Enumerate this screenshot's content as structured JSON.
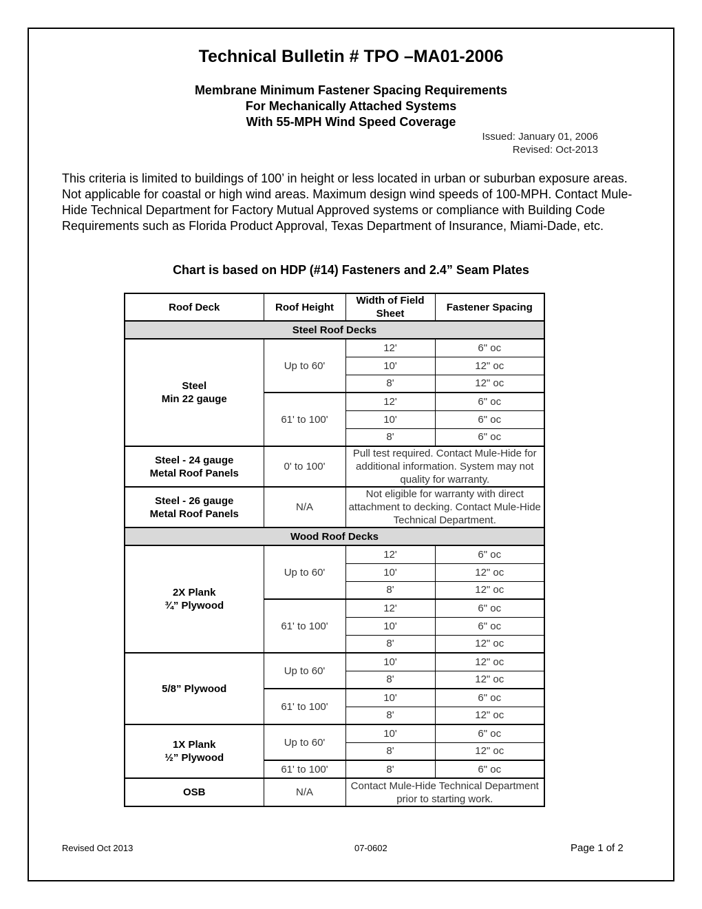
{
  "title": "Technical Bulletin # TPO –MA01-2006",
  "subtitle_lines": [
    "Membrane Minimum Fastener Spacing Requirements",
    "For Mechanically Attached Systems",
    "With 55-MPH Wind Speed Coverage"
  ],
  "issued": "Issued: January 01, 2006",
  "revised": "Revised: Oct-2013",
  "intro": "This criteria is limited to buildings of 100’ in height or less located in urban or suburban exposure areas.  Not applicable for coastal or high wind areas.  Maximum design wind speeds of 100-MPH.  Contact Mule-Hide Technical Department for Factory Mutual Approved systems or compliance with Building Code Requirements such as Florida Product Approval, Texas Department of Insurance, Miami-Dade, etc.",
  "chart_title": "Chart is based on HDP (#14) Fasteners and 2.4” Seam Plates",
  "table": {
    "headers": [
      "Roof Deck",
      "Roof Height",
      "Width of Field Sheet",
      "Fastener Spacing"
    ],
    "sections": [
      {
        "band": "Steel Roof Decks",
        "decks": [
          {
            "name": [
              "Steel",
              "Min 22 gauge"
            ],
            "heights": [
              {
                "label": "Up to 60'",
                "rows": [
                  [
                    "12'",
                    "6\" oc"
                  ],
                  [
                    "10'",
                    "12\" oc"
                  ],
                  [
                    "8'",
                    "12\" oc"
                  ]
                ]
              },
              {
                "label": "61' to 100'",
                "rows": [
                  [
                    "12'",
                    "6\" oc"
                  ],
                  [
                    "10'",
                    "6\" oc"
                  ],
                  [
                    "8'",
                    "6\" oc"
                  ]
                ]
              }
            ]
          },
          {
            "name": [
              "Steel - 24 gauge",
              "Metal Roof Panels"
            ],
            "heights": [
              {
                "label": "0' to 100'",
                "note": "Pull test required.  Contact Mule-Hide for additional information.  System may not quality for warranty."
              }
            ]
          },
          {
            "name": [
              "Steel - 26 gauge",
              "Metal Roof Panels"
            ],
            "heights": [
              {
                "label": "N/A",
                "note": "Not eligible for warranty with direct attachment to decking.  Contact Mule-Hide Technical Department."
              }
            ]
          }
        ]
      },
      {
        "band": "Wood Roof Decks",
        "decks": [
          {
            "name": [
              "2X Plank",
              "¾” Plywood"
            ],
            "heights": [
              {
                "label": "Up to 60'",
                "rows": [
                  [
                    "12'",
                    "6\" oc"
                  ],
                  [
                    "10'",
                    "12\" oc"
                  ],
                  [
                    "8'",
                    "12\" oc"
                  ]
                ]
              },
              {
                "label": "61' to 100'",
                "rows": [
                  [
                    "12'",
                    "6\" oc"
                  ],
                  [
                    "10'",
                    "6\" oc"
                  ],
                  [
                    "8'",
                    "12\" oc"
                  ]
                ]
              }
            ]
          },
          {
            "name": [
              "5/8” Plywood"
            ],
            "heights": [
              {
                "label": "Up to 60'",
                "rows": [
                  [
                    "10'",
                    "12\" oc"
                  ],
                  [
                    "8'",
                    "12\" oc"
                  ]
                ]
              },
              {
                "label": "61' to 100'",
                "rows": [
                  [
                    "10'",
                    "6\" oc"
                  ],
                  [
                    "8'",
                    "12\" oc"
                  ]
                ]
              }
            ]
          },
          {
            "name": [
              "1X Plank",
              "½” Plywood"
            ],
            "heights": [
              {
                "label": "Up to 60'",
                "rows": [
                  [
                    "10'",
                    "6\" oc"
                  ],
                  [
                    "8'",
                    "12\" oc"
                  ]
                ]
              },
              {
                "label": "61' to 100'",
                "rows": [
                  [
                    "8'",
                    "6\" oc"
                  ]
                ]
              }
            ]
          },
          {
            "name": [
              "OSB"
            ],
            "heights": [
              {
                "label": "N/A",
                "note": "Contact Mule-Hide Technical Department prior to starting work."
              }
            ]
          }
        ]
      }
    ]
  },
  "footer": {
    "left": "Revised Oct 2013",
    "center": "07-0602",
    "right": "Page 1 of 2"
  }
}
